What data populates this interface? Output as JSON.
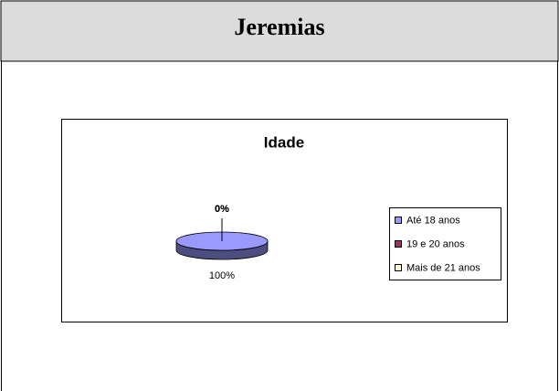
{
  "header": {
    "title": "Jeremias"
  },
  "chart_data": {
    "type": "pie3d",
    "title": "Idade",
    "categories": [
      "Até 18 anos",
      "19 e 20 anos",
      "Mais de 21 anos"
    ],
    "values": [
      100,
      0,
      0
    ],
    "value_labels": [
      "100%",
      "0%",
      "0%"
    ],
    "colors": [
      "#9999ff",
      "#993366",
      "#ffffcc"
    ],
    "legend": "right"
  }
}
